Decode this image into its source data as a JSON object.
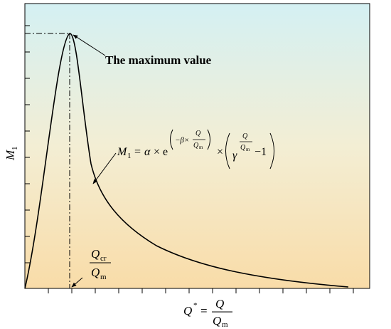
{
  "annotation": "The maximum value",
  "y_axis_label": {
    "symbol": "M",
    "subscript": "1"
  },
  "x_axis_label": {
    "symbol": "Q",
    "superscript": "*",
    "equals": "=",
    "numerator": "Q",
    "denominator": "Q",
    "denominator_subscript": "m"
  },
  "critical_label": {
    "numerator": "Q",
    "numerator_subscript": "cr",
    "denominator": "Q",
    "denominator_subscript": "m"
  },
  "formula": {
    "lhs": "M",
    "lhs_sub": "1",
    "eq": "=",
    "alpha": "α",
    "times1": "×",
    "e": "e",
    "exp_prefix": "−β×",
    "exp_num": "Q",
    "exp_den": "Q",
    "exp_den_sub": "m",
    "times2": "×",
    "gamma": "γ",
    "pow_num": "Q",
    "pow_den": "Q",
    "pow_den_sub": "m",
    "minus_one": "−1"
  }
}
